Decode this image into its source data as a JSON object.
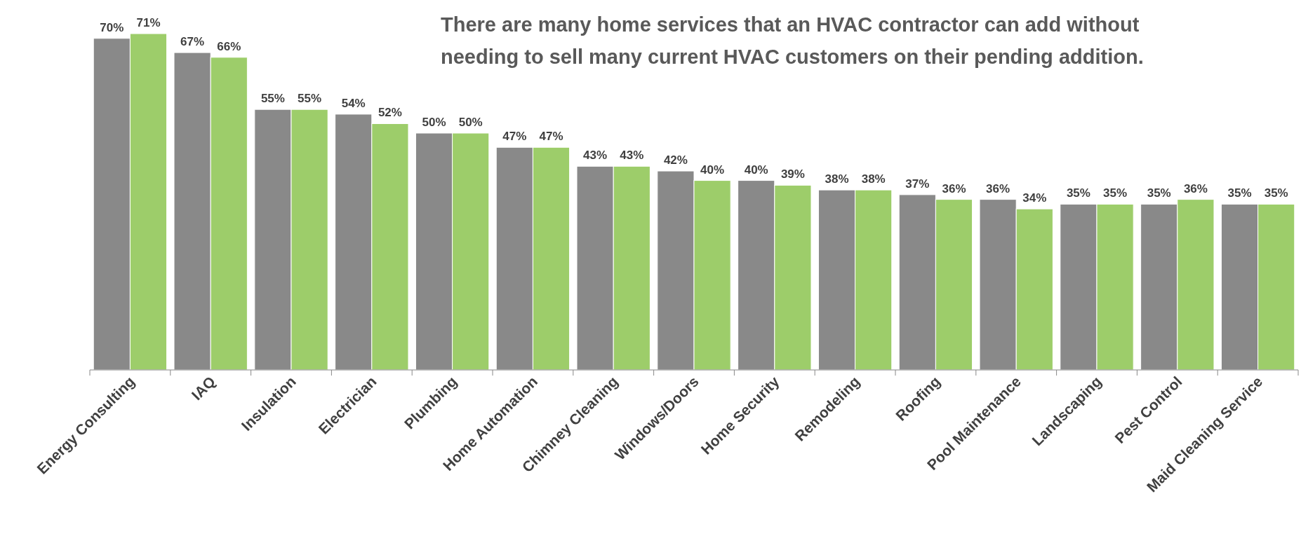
{
  "chart_data": {
    "type": "bar",
    "title": "There are many home services that an HVAC contractor can add without  needing to sell many current  HVAC customers on their pending addition.",
    "categories": [
      "Energy Consulting",
      "IAQ",
      "Insulation",
      "Electrician",
      "Plumbing",
      "Home Automation",
      "Chimney Cleaning",
      "Windows/Doors",
      "Home Security",
      "Remodeling",
      "Roofing",
      "Pool Maintenance",
      "Landscaping",
      "Pest Control",
      "Maid Cleaning Service"
    ],
    "series": [
      {
        "color": "#898989",
        "values": [
          70,
          67,
          55,
          54,
          50,
          47,
          43,
          42,
          40,
          38,
          37,
          36,
          35,
          35,
          35
        ],
        "value_labels": [
          "70%",
          "67%",
          "55%",
          "54%",
          "50%",
          "47%",
          "43%",
          "42%",
          "40%",
          "38%",
          "37%",
          "36%",
          "35%",
          "35%",
          "35%"
        ]
      },
      {
        "color": "#9dcd6a",
        "values": [
          71,
          66,
          55,
          52,
          50,
          47,
          43,
          40,
          39,
          38,
          36,
          34,
          35,
          36,
          35
        ],
        "value_labels": [
          "71%",
          "66%",
          "55%",
          "52%",
          "50%",
          "47%",
          "43%",
          "40%",
          "39%",
          "38%",
          "36%",
          "34%",
          "35%",
          "36%",
          "35%"
        ]
      }
    ],
    "stacked": false
  }
}
